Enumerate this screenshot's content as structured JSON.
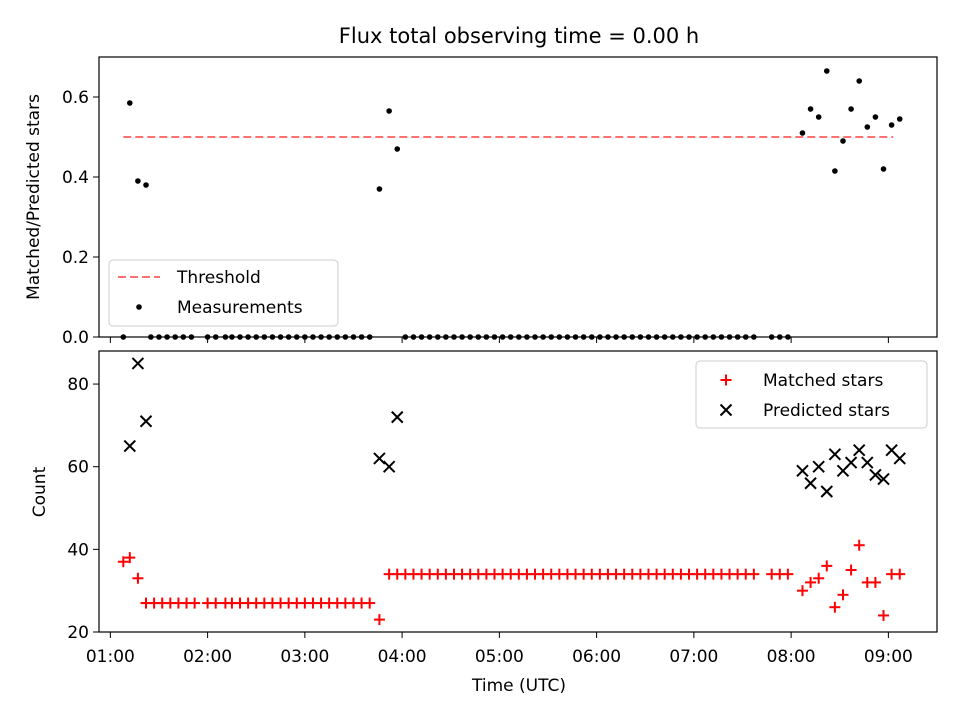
{
  "chart_data": [
    {
      "type": "scatter",
      "title": "Flux total observing time = 0.00 h",
      "xlabel": "",
      "ylabel": "Matched/Predicted stars",
      "ylim": [
        0,
        0.7
      ],
      "yticks": [
        "0.0",
        "0.2",
        "0.4",
        "0.6"
      ],
      "legend_position": "lower-left",
      "threshold": {
        "name": "Threshold",
        "value": 0.5,
        "x_range": [
          "01:08",
          "09:03"
        ],
        "color": "#ff7070"
      },
      "series": [
        {
          "name": "Measurements",
          "color": "#000000",
          "points": [
            [
              "01:08",
              0.0
            ],
            [
              "01:12",
              0.585
            ],
            [
              "01:17",
              0.39
            ],
            [
              "01:22",
              0.38
            ],
            [
              "01:25",
              0.0
            ],
            [
              "01:30",
              0.0
            ],
            [
              "01:35",
              0.0
            ],
            [
              "01:40",
              0.0
            ],
            [
              "01:45",
              0.0
            ],
            [
              "01:50",
              0.0
            ],
            [
              "02:00",
              0.0
            ],
            [
              "02:05",
              0.0
            ],
            [
              "02:11",
              0.0
            ],
            [
              "02:15",
              0.0
            ],
            [
              "02:20",
              0.0
            ],
            [
              "02:25",
              0.0
            ],
            [
              "02:30",
              0.0
            ],
            [
              "02:35",
              0.0
            ],
            [
              "02:40",
              0.0
            ],
            [
              "02:45",
              0.0
            ],
            [
              "02:50",
              0.0
            ],
            [
              "02:55",
              0.0
            ],
            [
              "03:00",
              0.0
            ],
            [
              "03:05",
              0.0
            ],
            [
              "03:10",
              0.0
            ],
            [
              "03:15",
              0.0
            ],
            [
              "03:20",
              0.0
            ],
            [
              "03:25",
              0.0
            ],
            [
              "03:30",
              0.0
            ],
            [
              "03:35",
              0.0
            ],
            [
              "03:40",
              0.0
            ],
            [
              "03:46",
              0.37
            ],
            [
              "03:52",
              0.565
            ],
            [
              "03:57",
              0.47
            ],
            [
              "04:02",
              0.0
            ],
            [
              "04:07",
              0.0
            ],
            [
              "04:12",
              0.0
            ],
            [
              "04:17",
              0.0
            ],
            [
              "04:22",
              0.0
            ],
            [
              "04:27",
              0.0
            ],
            [
              "04:32",
              0.0
            ],
            [
              "04:37",
              0.0
            ],
            [
              "04:42",
              0.0
            ],
            [
              "04:47",
              0.0
            ],
            [
              "04:52",
              0.0
            ],
            [
              "04:57",
              0.0
            ],
            [
              "05:02",
              0.0
            ],
            [
              "05:07",
              0.0
            ],
            [
              "05:12",
              0.0
            ],
            [
              "05:17",
              0.0
            ],
            [
              "05:22",
              0.0
            ],
            [
              "05:27",
              0.0
            ],
            [
              "05:32",
              0.0
            ],
            [
              "05:37",
              0.0
            ],
            [
              "05:42",
              0.0
            ],
            [
              "05:47",
              0.0
            ],
            [
              "05:52",
              0.0
            ],
            [
              "05:57",
              0.0
            ],
            [
              "06:02",
              0.0
            ],
            [
              "06:07",
              0.0
            ],
            [
              "06:12",
              0.0
            ],
            [
              "06:17",
              0.0
            ],
            [
              "06:22",
              0.0
            ],
            [
              "06:27",
              0.0
            ],
            [
              "06:32",
              0.0
            ],
            [
              "06:37",
              0.0
            ],
            [
              "06:42",
              0.0
            ],
            [
              "06:47",
              0.0
            ],
            [
              "06:52",
              0.0
            ],
            [
              "06:57",
              0.0
            ],
            [
              "07:02",
              0.0
            ],
            [
              "07:07",
              0.0
            ],
            [
              "07:12",
              0.0
            ],
            [
              "07:17",
              0.0
            ],
            [
              "07:22",
              0.0
            ],
            [
              "07:27",
              0.0
            ],
            [
              "07:32",
              0.0
            ],
            [
              "07:37",
              0.0
            ],
            [
              "07:48",
              0.0
            ],
            [
              "07:53",
              0.0
            ],
            [
              "07:58",
              0.0
            ],
            [
              "08:07",
              0.51
            ],
            [
              "08:12",
              0.57
            ],
            [
              "08:17",
              0.55
            ],
            [
              "08:22",
              0.665
            ],
            [
              "08:27",
              0.415
            ],
            [
              "08:32",
              0.49
            ],
            [
              "08:37",
              0.57
            ],
            [
              "08:42",
              0.64
            ],
            [
              "08:47",
              0.525
            ],
            [
              "08:52",
              0.55
            ],
            [
              "08:57",
              0.42
            ],
            [
              "09:02",
              0.53
            ],
            [
              "09:07",
              0.545
            ]
          ]
        }
      ]
    },
    {
      "type": "scatter",
      "title": "",
      "xlabel": "Time (UTC)",
      "ylabel": "Count",
      "ylim": [
        20,
        88
      ],
      "yticks": [
        "20",
        "40",
        "60",
        "80"
      ],
      "xticks": [
        "01:00",
        "02:00",
        "03:00",
        "04:00",
        "05:00",
        "06:00",
        "07:00",
        "08:00",
        "09:00"
      ],
      "xlim": [
        "00:53",
        "09:30"
      ],
      "legend_position": "upper-right",
      "series": [
        {
          "name": "Matched stars",
          "marker": "plus",
          "color": "#ff0000",
          "points": [
            [
              "01:08",
              37
            ],
            [
              "01:12",
              38
            ],
            [
              "01:17",
              33
            ],
            [
              "01:22",
              27
            ],
            [
              "01:27",
              27
            ],
            [
              "01:32",
              27
            ],
            [
              "01:37",
              27
            ],
            [
              "01:42",
              27
            ],
            [
              "01:47",
              27
            ],
            [
              "01:52",
              27
            ],
            [
              "02:00",
              27
            ],
            [
              "02:05",
              27
            ],
            [
              "02:11",
              27
            ],
            [
              "02:15",
              27
            ],
            [
              "02:20",
              27
            ],
            [
              "02:25",
              27
            ],
            [
              "02:30",
              27
            ],
            [
              "02:35",
              27
            ],
            [
              "02:40",
              27
            ],
            [
              "02:45",
              27
            ],
            [
              "02:50",
              27
            ],
            [
              "02:55",
              27
            ],
            [
              "03:00",
              27
            ],
            [
              "03:05",
              27
            ],
            [
              "03:10",
              27
            ],
            [
              "03:15",
              27
            ],
            [
              "03:20",
              27
            ],
            [
              "03:25",
              27
            ],
            [
              "03:30",
              27
            ],
            [
              "03:35",
              27
            ],
            [
              "03:40",
              27
            ],
            [
              "03:46",
              23
            ],
            [
              "03:52",
              34
            ],
            [
              "03:57",
              34
            ],
            [
              "04:02",
              34
            ],
            [
              "04:07",
              34
            ],
            [
              "04:12",
              34
            ],
            [
              "04:17",
              34
            ],
            [
              "04:22",
              34
            ],
            [
              "04:27",
              34
            ],
            [
              "04:32",
              34
            ],
            [
              "04:37",
              34
            ],
            [
              "04:42",
              34
            ],
            [
              "04:47",
              34
            ],
            [
              "04:52",
              34
            ],
            [
              "04:57",
              34
            ],
            [
              "05:02",
              34
            ],
            [
              "05:07",
              34
            ],
            [
              "05:12",
              34
            ],
            [
              "05:17",
              34
            ],
            [
              "05:22",
              34
            ],
            [
              "05:27",
              34
            ],
            [
              "05:32",
              34
            ],
            [
              "05:37",
              34
            ],
            [
              "05:42",
              34
            ],
            [
              "05:47",
              34
            ],
            [
              "05:52",
              34
            ],
            [
              "05:57",
              34
            ],
            [
              "06:02",
              34
            ],
            [
              "06:07",
              34
            ],
            [
              "06:12",
              34
            ],
            [
              "06:17",
              34
            ],
            [
              "06:22",
              34
            ],
            [
              "06:27",
              34
            ],
            [
              "06:32",
              34
            ],
            [
              "06:37",
              34
            ],
            [
              "06:42",
              34
            ],
            [
              "06:47",
              34
            ],
            [
              "06:52",
              34
            ],
            [
              "06:57",
              34
            ],
            [
              "07:02",
              34
            ],
            [
              "07:07",
              34
            ],
            [
              "07:12",
              34
            ],
            [
              "07:17",
              34
            ],
            [
              "07:22",
              34
            ],
            [
              "07:27",
              34
            ],
            [
              "07:32",
              34
            ],
            [
              "07:37",
              34
            ],
            [
              "07:48",
              34
            ],
            [
              "07:53",
              34
            ],
            [
              "07:58",
              34
            ],
            [
              "08:07",
              30
            ],
            [
              "08:12",
              32
            ],
            [
              "08:17",
              33
            ],
            [
              "08:22",
              36
            ],
            [
              "08:27",
              26
            ],
            [
              "08:32",
              29
            ],
            [
              "08:37",
              35
            ],
            [
              "08:42",
              41
            ],
            [
              "08:47",
              32
            ],
            [
              "08:52",
              32
            ],
            [
              "08:57",
              24
            ],
            [
              "09:02",
              34
            ],
            [
              "09:07",
              34
            ]
          ]
        },
        {
          "name": "Predicted stars",
          "marker": "x",
          "color": "#000000",
          "points": [
            [
              "01:12",
              65
            ],
            [
              "01:17",
              85
            ],
            [
              "01:22",
              71
            ],
            [
              "03:46",
              62
            ],
            [
              "03:52",
              60
            ],
            [
              "03:57",
              72
            ],
            [
              "08:07",
              59
            ],
            [
              "08:12",
              56
            ],
            [
              "08:17",
              60
            ],
            [
              "08:22",
              54
            ],
            [
              "08:27",
              63
            ],
            [
              "08:32",
              59
            ],
            [
              "08:37",
              61
            ],
            [
              "08:42",
              64
            ],
            [
              "08:47",
              61
            ],
            [
              "08:52",
              58
            ],
            [
              "08:57",
              57
            ],
            [
              "09:02",
              64
            ],
            [
              "09:07",
              62
            ]
          ]
        }
      ]
    }
  ]
}
